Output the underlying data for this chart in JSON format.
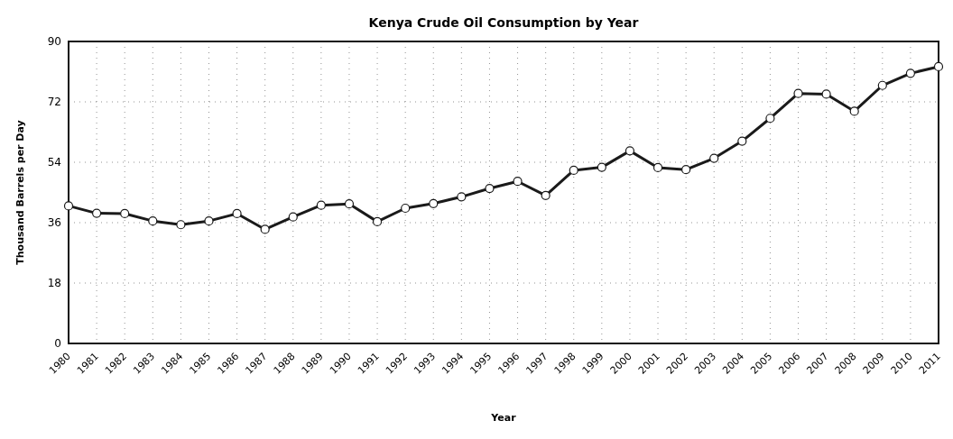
{
  "chart_data": {
    "type": "line",
    "title": "Kenya Crude Oil Consumption by Year",
    "xlabel": "Year",
    "ylabel": "Thousand Barrels per Day",
    "categories": [
      "1980",
      "1981",
      "1982",
      "1983",
      "1984",
      "1985",
      "1986",
      "1987",
      "1988",
      "1989",
      "1990",
      "1991",
      "1992",
      "1993",
      "1994",
      "1995",
      "1996",
      "1997",
      "1998",
      "1999",
      "2000",
      "2001",
      "2002",
      "2003",
      "2004",
      "2005",
      "2006",
      "2007",
      "2008",
      "2009",
      "2010",
      "2011"
    ],
    "series": [
      {
        "color": "#1a1a1a",
        "values": [
          41,
          38.8,
          38.7,
          36.5,
          35.4,
          36.5,
          38.7,
          34,
          37.7,
          41.2,
          41.6,
          36.3,
          40.3,
          41.7,
          43.7,
          46.2,
          48.3,
          44.1,
          51.6,
          52.5,
          57.4,
          52.4,
          51.8,
          55.2,
          60.3,
          67.1,
          74.5,
          74.3,
          69.2,
          76.9,
          80.5,
          82.5
        ]
      }
    ],
    "ylim": [
      0,
      90
    ],
    "yticks": [
      0,
      18,
      36,
      54,
      72,
      90
    ],
    "grid": true,
    "marker": "circle",
    "line_style": "solid"
  }
}
